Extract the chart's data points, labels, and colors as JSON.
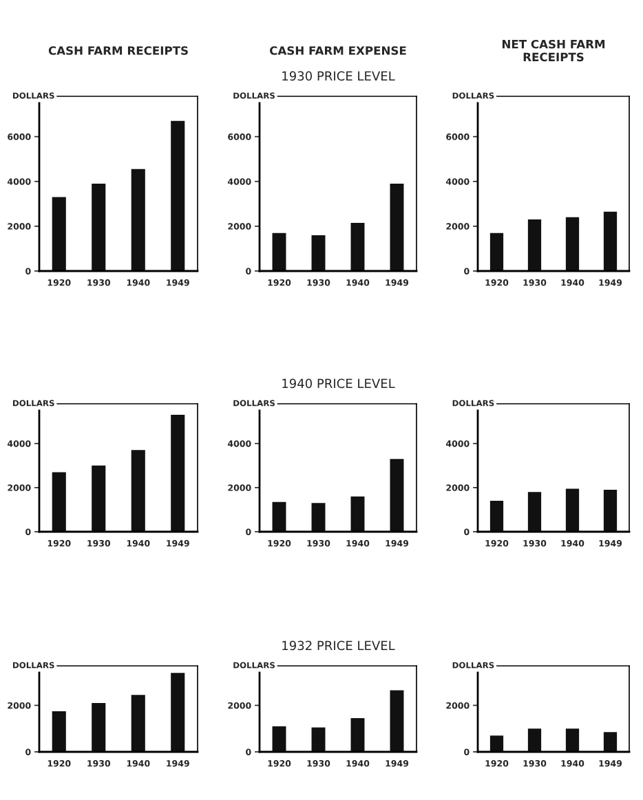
{
  "chart_data": [
    {
      "type": "bar",
      "title": "CASH FARM RECEIPTS",
      "ylabel": "DOLLARS",
      "categories": [
        "1920",
        "1930",
        "1940",
        "1949"
      ],
      "values": [
        3300,
        3900,
        4550,
        6700
      ],
      "color": "#111111",
      "ylim": [
        0,
        7800
      ],
      "yticks": [
        0,
        2000,
        4000,
        6000
      ],
      "grid": false
    },
    {
      "type": "bar",
      "title": "CASH FARM EXPENSE",
      "subtitle": "1930 PRICE LEVEL",
      "ylabel": "DOLLARS",
      "categories": [
        "1920",
        "1930",
        "1940",
        "1949"
      ],
      "values": [
        1700,
        1600,
        2150,
        3900
      ],
      "color": "#111111",
      "ylim": [
        0,
        7800
      ],
      "yticks": [
        0,
        2000,
        4000,
        6000
      ],
      "grid": false
    },
    {
      "type": "bar",
      "title": "NET CASH FARM\nRECEIPTS",
      "ylabel": "DOLLARS",
      "categories": [
        "1920",
        "1930",
        "1940",
        "1949"
      ],
      "values": [
        1700,
        2300,
        2400,
        2650
      ],
      "color": "#111111",
      "ylim": [
        0,
        7800
      ],
      "yticks": [
        0,
        2000,
        4000,
        6000
      ],
      "grid": false
    },
    {
      "type": "bar",
      "ylabel": "DOLLARS",
      "categories": [
        "1920",
        "1930",
        "1940",
        "1949"
      ],
      "values": [
        2700,
        3000,
        3700,
        5300
      ],
      "color": "#111111",
      "ylim": [
        0,
        5800
      ],
      "yticks": [
        0,
        2000,
        4000
      ],
      "grid": false
    },
    {
      "type": "bar",
      "subtitle": "1940 PRICE LEVEL",
      "ylabel": "DOLLARS",
      "categories": [
        "1920",
        "1930",
        "1940",
        "1949"
      ],
      "values": [
        1350,
        1300,
        1600,
        3300
      ],
      "color": "#111111",
      "ylim": [
        0,
        5800
      ],
      "yticks": [
        0,
        2000,
        4000
      ],
      "grid": false
    },
    {
      "type": "bar",
      "ylabel": "DOLLARS",
      "categories": [
        "1920",
        "1930",
        "1940",
        "1949"
      ],
      "values": [
        1400,
        1800,
        1950,
        1900
      ],
      "color": "#111111",
      "ylim": [
        0,
        5800
      ],
      "yticks": [
        0,
        2000,
        4000
      ],
      "grid": false
    },
    {
      "type": "bar",
      "ylabel": "DOLLARS",
      "categories": [
        "1920",
        "1930",
        "1940",
        "1949"
      ],
      "values": [
        1750,
        2100,
        2450,
        3400
      ],
      "color": "#111111",
      "ylim": [
        0,
        3700
      ],
      "yticks": [
        0,
        2000
      ],
      "grid": false
    },
    {
      "type": "bar",
      "subtitle": "1932 PRICE LEVEL",
      "ylabel": "DOLLARS",
      "categories": [
        "1920",
        "1930",
        "1940",
        "1949"
      ],
      "values": [
        1100,
        1050,
        1450,
        2650
      ],
      "color": "#111111",
      "ylim": [
        0,
        3700
      ],
      "yticks": [
        0,
        2000
      ],
      "grid": false
    },
    {
      "type": "bar",
      "ylabel": "DOLLARS",
      "categories": [
        "1920",
        "1930",
        "1940",
        "1949"
      ],
      "values": [
        700,
        1000,
        1000,
        850
      ],
      "color": "#111111",
      "ylim": [
        0,
        3700
      ],
      "yticks": [
        0,
        2000
      ],
      "grid": false
    }
  ]
}
